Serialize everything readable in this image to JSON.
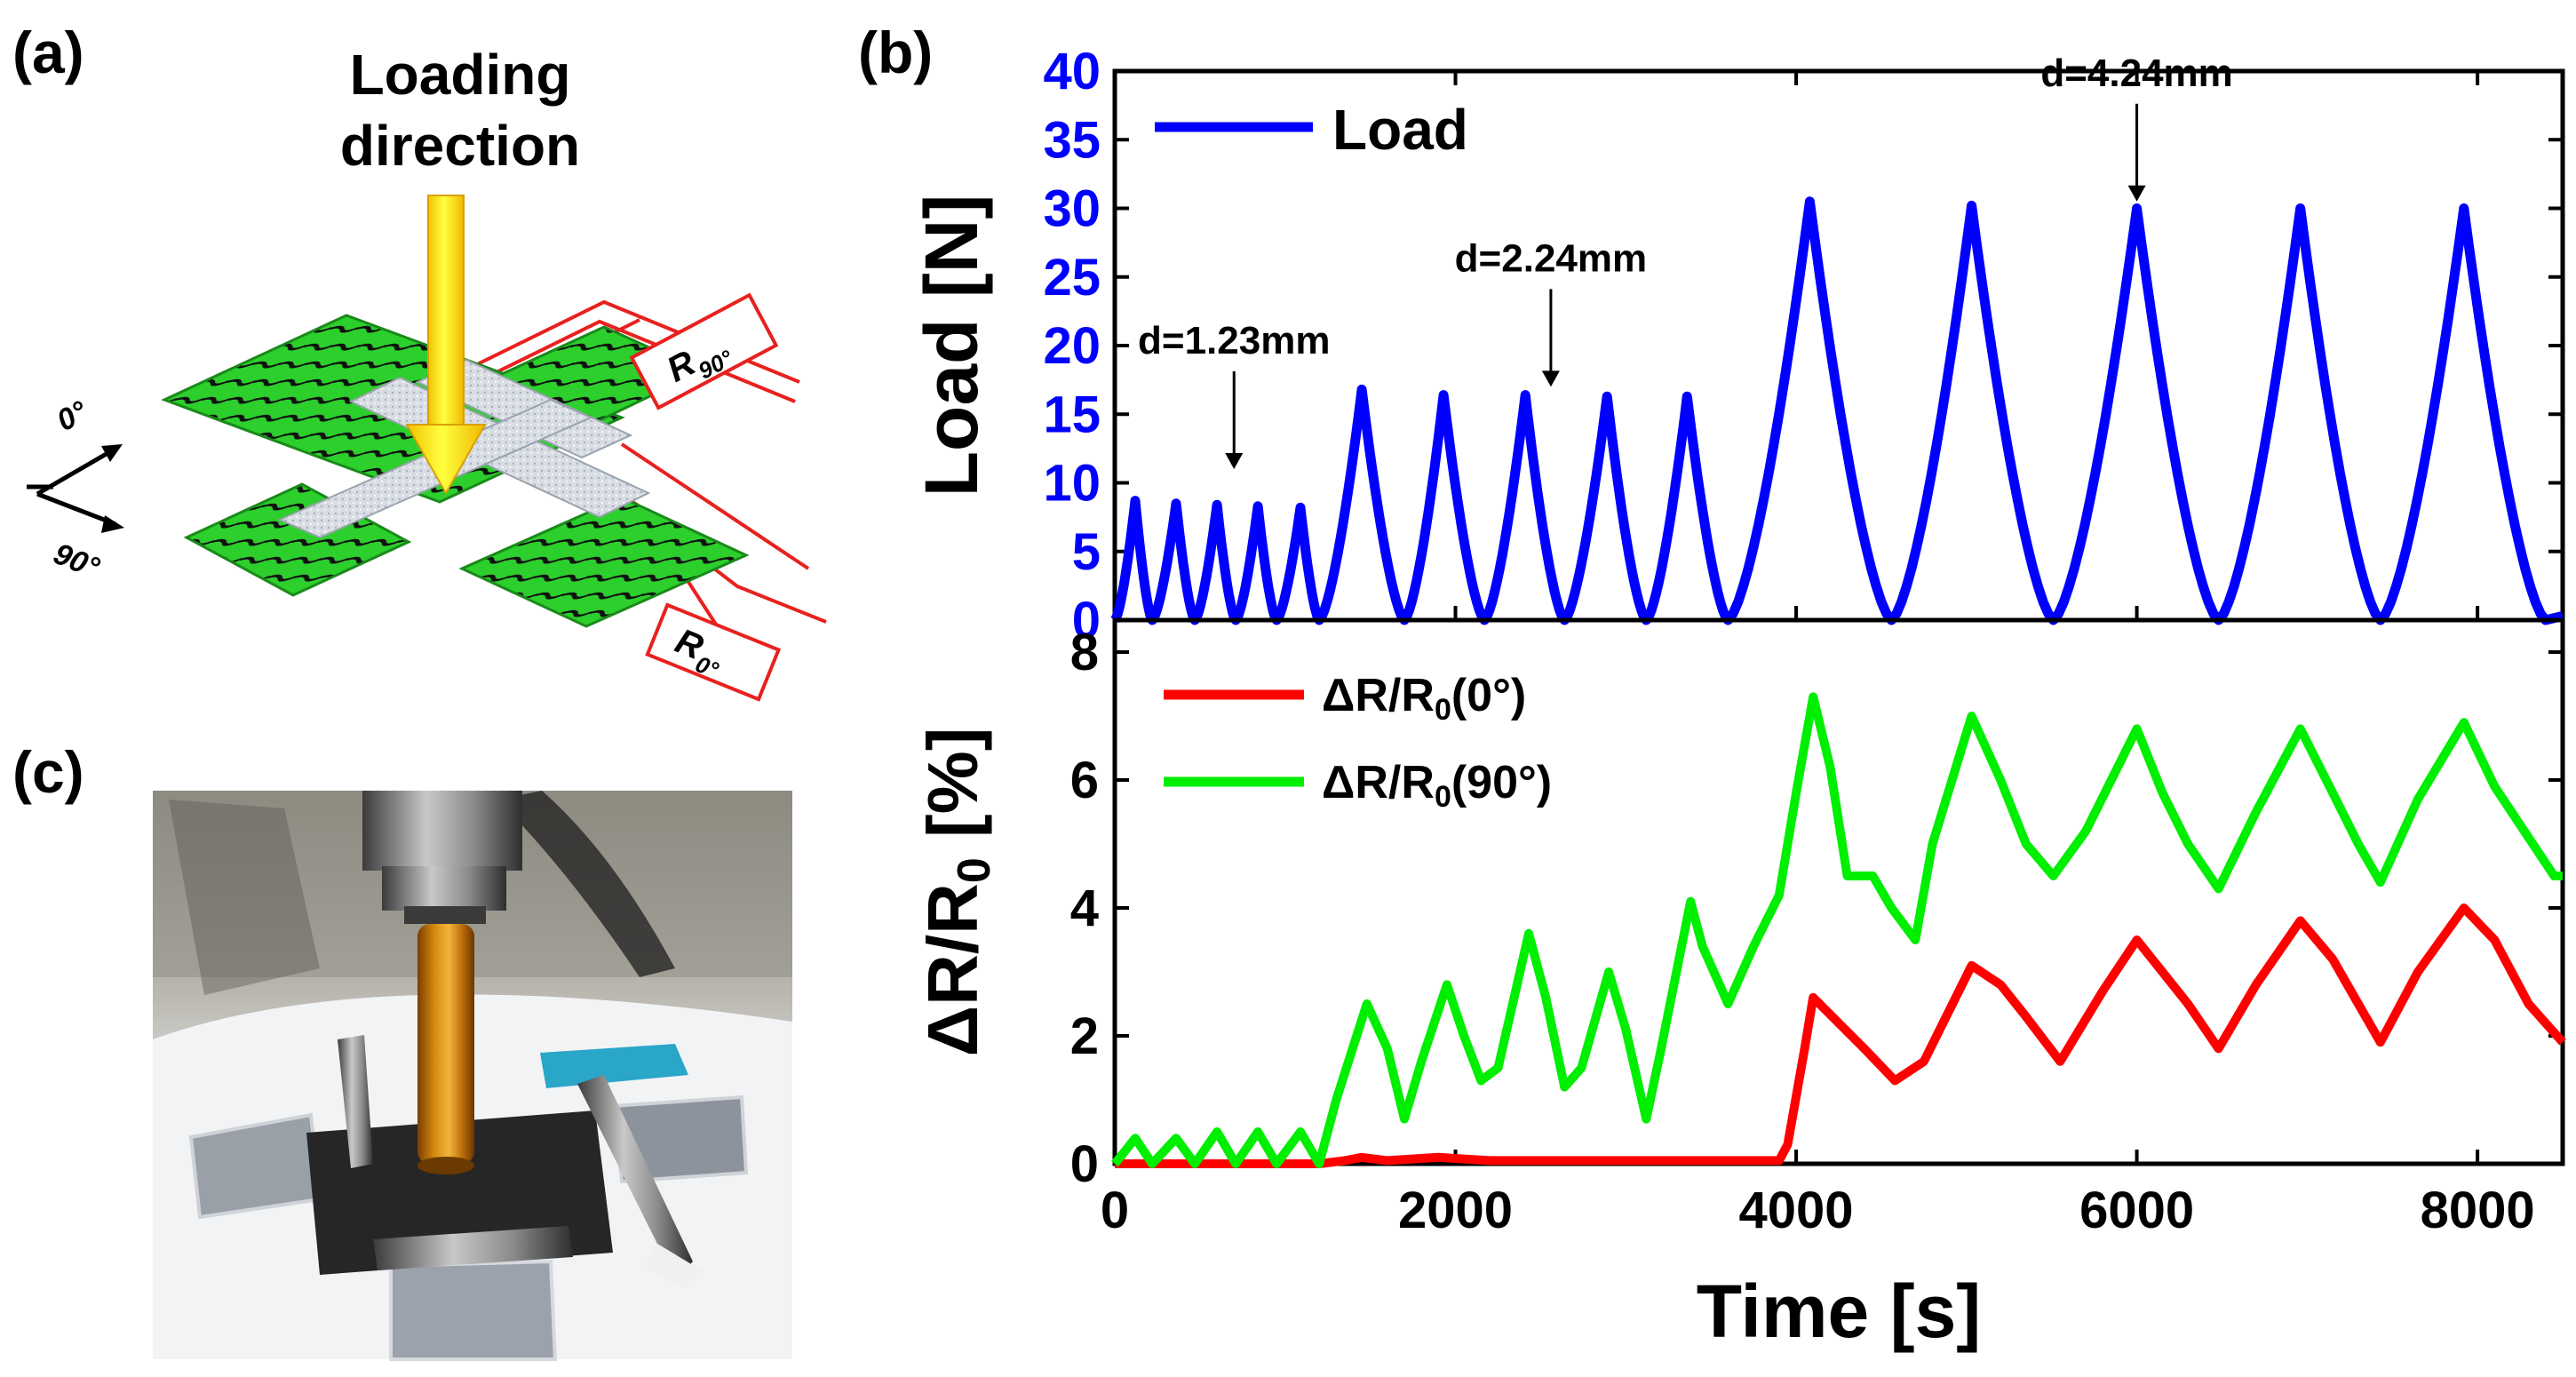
{
  "panels": {
    "a": {
      "label": "(a)",
      "loading_text_1": "Loading",
      "loading_text_2": "direction",
      "axis_0": "0°",
      "axis_90": "90°",
      "r90_label": "R",
      "r90_sub": "90°",
      "r0_label": "R",
      "r0_sub": "0°"
    },
    "b": {
      "label": "(b)"
    },
    "c": {
      "label": "(c)"
    }
  },
  "chart_data": [
    {
      "type": "line",
      "title": "",
      "xlabel": "",
      "ylabel": "Load [N]",
      "xlim": [
        0,
        8500
      ],
      "ylim": [
        0,
        40
      ],
      "yticks": [
        0,
        5,
        10,
        15,
        20,
        25,
        30,
        35,
        40
      ],
      "grid": false,
      "legend": "top-left",
      "series": [
        {
          "name": "Load",
          "color": "#0000ff",
          "cycles": [
            {
              "start": 0,
              "peak_t": 120,
              "peak": 8.7,
              "end": 220
            },
            {
              "start": 220,
              "peak_t": 360,
              "peak": 8.5,
              "end": 470
            },
            {
              "start": 470,
              "peak_t": 600,
              "peak": 8.4,
              "end": 710
            },
            {
              "start": 710,
              "peak_t": 840,
              "peak": 8.3,
              "end": 950
            },
            {
              "start": 950,
              "peak_t": 1090,
              "peak": 8.2,
              "end": 1200
            },
            {
              "start": 1200,
              "peak_t": 1450,
              "peak": 16.8,
              "end": 1700
            },
            {
              "start": 1700,
              "peak_t": 1930,
              "peak": 16.4,
              "end": 2170
            },
            {
              "start": 2170,
              "peak_t": 2410,
              "peak": 16.4,
              "end": 2640
            },
            {
              "start": 2640,
              "peak_t": 2890,
              "peak": 16.3,
              "end": 3120
            },
            {
              "start": 3120,
              "peak_t": 3360,
              "peak": 16.3,
              "end": 3600
            },
            {
              "start": 3600,
              "peak_t": 4080,
              "peak": 30.5,
              "end": 4560
            },
            {
              "start": 4560,
              "peak_t": 5030,
              "peak": 30.2,
              "end": 5510
            },
            {
              "start": 5510,
              "peak_t": 6000,
              "peak": 30.0,
              "end": 6480
            },
            {
              "start": 6480,
              "peak_t": 6960,
              "peak": 30.0,
              "end": 7430
            },
            {
              "start": 7430,
              "peak_t": 7920,
              "peak": 30.0,
              "end": 8400
            }
          ]
        }
      ],
      "annotations": [
        {
          "text": "d=1.23mm",
          "x": 700,
          "y": 11
        },
        {
          "text": "d=2.24mm",
          "x": 2560,
          "y": 17
        },
        {
          "text": "d=4.24mm",
          "x": 6000,
          "y": 30.5
        }
      ]
    },
    {
      "type": "line",
      "title": "",
      "xlabel": "Time [s]",
      "ylabel": "ΔR/R0 [%]",
      "xlim": [
        0,
        8500
      ],
      "ylim": [
        0,
        8.5
      ],
      "xticks": [
        0,
        2000,
        4000,
        6000,
        8000
      ],
      "yticks": [
        0,
        2,
        4,
        6,
        8
      ],
      "grid": false,
      "legend": "top-left",
      "series": [
        {
          "name": "ΔR/R0(0°)",
          "color": "#ff0000",
          "x": [
            0,
            1200,
            1350,
            1450,
            1600,
            1900,
            2200,
            2450,
            2700,
            3000,
            3400,
            3900,
            3950,
            4050,
            4100,
            4250,
            4400,
            4580,
            4750,
            5030,
            5200,
            5350,
            5550,
            5800,
            6000,
            6150,
            6300,
            6480,
            6700,
            6960,
            7150,
            7300,
            7430,
            7650,
            7920,
            8100,
            8300,
            8500
          ],
          "values": [
            0,
            0,
            0.05,
            0.1,
            0.05,
            0.1,
            0.05,
            0.05,
            0.05,
            0.05,
            0.05,
            0.05,
            0.3,
            1.8,
            2.6,
            2.2,
            1.8,
            1.3,
            1.6,
            3.1,
            2.8,
            2.3,
            1.6,
            2.7,
            3.5,
            3.0,
            2.5,
            1.8,
            2.8,
            3.8,
            3.2,
            2.5,
            1.9,
            3.0,
            4.0,
            3.5,
            2.5,
            1.9
          ]
        },
        {
          "name": "ΔR/R0(90°)",
          "color": "#00ee00",
          "x": [
            0,
            120,
            220,
            360,
            470,
            600,
            710,
            840,
            950,
            1090,
            1200,
            1300,
            1480,
            1600,
            1700,
            1800,
            1950,
            2050,
            2150,
            2250,
            2430,
            2530,
            2640,
            2740,
            2900,
            3000,
            3120,
            3200,
            3380,
            3450,
            3600,
            3750,
            3900,
            4000,
            4100,
            4200,
            4300,
            4450,
            4560,
            4700,
            4800,
            5030,
            5200,
            5350,
            5510,
            5700,
            6000,
            6150,
            6300,
            6480,
            6700,
            6960,
            7150,
            7300,
            7430,
            7650,
            7920,
            8100,
            8300,
            8450,
            8500
          ],
          "values": [
            0,
            0.4,
            0,
            0.4,
            0,
            0.5,
            0,
            0.5,
            0,
            0.5,
            0,
            1.0,
            2.5,
            1.8,
            0.7,
            1.6,
            2.8,
            2.0,
            1.3,
            1.5,
            3.6,
            2.6,
            1.2,
            1.5,
            3.0,
            2.1,
            0.7,
            1.7,
            4.1,
            3.4,
            2.5,
            3.4,
            4.2,
            5.8,
            7.3,
            6.2,
            4.5,
            4.5,
            4.0,
            3.5,
            5.0,
            7.0,
            6.0,
            5.0,
            4.5,
            5.2,
            6.8,
            5.8,
            5.0,
            4.3,
            5.5,
            6.8,
            5.8,
            5.0,
            4.4,
            5.7,
            6.9,
            5.9,
            5.1,
            4.5,
            4.5
          ]
        }
      ]
    }
  ]
}
